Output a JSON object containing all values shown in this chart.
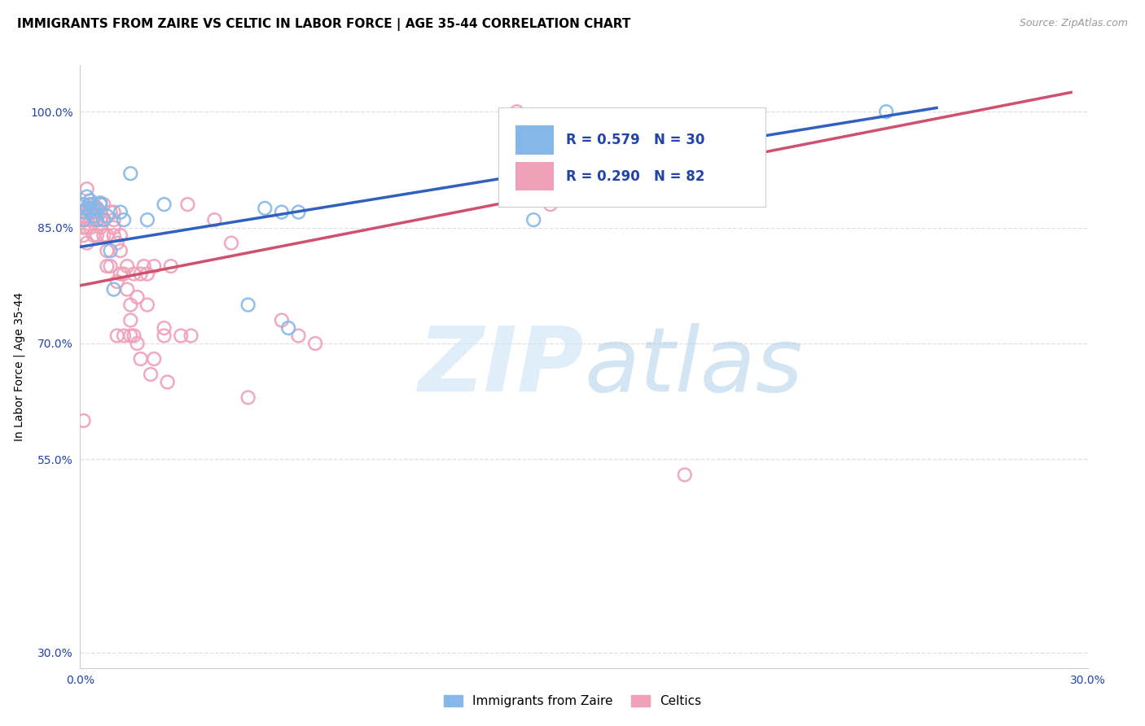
{
  "title": "IMMIGRANTS FROM ZAIRE VS CELTIC IN LABOR FORCE | AGE 35-44 CORRELATION CHART",
  "source": "Source: ZipAtlas.com",
  "ylabel": "In Labor Force | Age 35-44",
  "xlim": [
    0.0,
    0.3
  ],
  "ylim": [
    0.28,
    1.06
  ],
  "xticks": [
    0.0,
    0.05,
    0.1,
    0.15,
    0.2,
    0.25,
    0.3
  ],
  "xticklabels": [
    "0.0%",
    "",
    "",
    "",
    "",
    "",
    "30.0%"
  ],
  "yticks": [
    0.3,
    0.55,
    0.7,
    0.85,
    1.0
  ],
  "yticklabels": [
    "30.0%",
    "55.0%",
    "70.0%",
    "85.0%",
    "100.0%"
  ],
  "grid_color": "#e0e0e0",
  "background_color": "#ffffff",
  "blue_color": "#85b8e8",
  "pink_color": "#f0a0b8",
  "blue_line_color": "#3060c0",
  "pink_line_color": "#d05070",
  "legend_text_color": "#2244aa",
  "blue_R": 0.579,
  "blue_N": 30,
  "pink_R": 0.29,
  "pink_N": 82,
  "legend_label_blue": "Immigrants from Zaire",
  "legend_label_pink": "Celtics",
  "blue_points_x": [
    0.001,
    0.001,
    0.001,
    0.002,
    0.002,
    0.003,
    0.003,
    0.003,
    0.004,
    0.004,
    0.005,
    0.005,
    0.006,
    0.006,
    0.007,
    0.008,
    0.009,
    0.01,
    0.012,
    0.013,
    0.015,
    0.02,
    0.025,
    0.05,
    0.055,
    0.06,
    0.062,
    0.065,
    0.135,
    0.24
  ],
  "blue_points_y": [
    0.87,
    0.88,
    0.86,
    0.89,
    0.875,
    0.88,
    0.885,
    0.87,
    0.865,
    0.875,
    0.86,
    0.875,
    0.88,
    0.882,
    0.86,
    0.865,
    0.82,
    0.77,
    0.87,
    0.86,
    0.92,
    0.86,
    0.88,
    0.75,
    0.875,
    0.87,
    0.72,
    0.87,
    0.86,
    1.0
  ],
  "pink_points_x": [
    0.001,
    0.001,
    0.001,
    0.001,
    0.001,
    0.001,
    0.001,
    0.002,
    0.002,
    0.002,
    0.002,
    0.002,
    0.002,
    0.003,
    0.003,
    0.003,
    0.003,
    0.003,
    0.004,
    0.004,
    0.004,
    0.004,
    0.005,
    0.005,
    0.005,
    0.005,
    0.006,
    0.006,
    0.006,
    0.007,
    0.007,
    0.007,
    0.008,
    0.008,
    0.008,
    0.009,
    0.009,
    0.01,
    0.01,
    0.01,
    0.01,
    0.011,
    0.011,
    0.011,
    0.012,
    0.012,
    0.012,
    0.013,
    0.013,
    0.014,
    0.014,
    0.015,
    0.015,
    0.015,
    0.016,
    0.016,
    0.017,
    0.017,
    0.018,
    0.018,
    0.019,
    0.02,
    0.02,
    0.021,
    0.022,
    0.022,
    0.025,
    0.025,
    0.026,
    0.027,
    0.03,
    0.032,
    0.033,
    0.04,
    0.045,
    0.05,
    0.06,
    0.065,
    0.07,
    0.13,
    0.14,
    0.18
  ],
  "pink_points_y": [
    0.87,
    0.88,
    0.86,
    0.865,
    0.84,
    0.85,
    0.6,
    0.9,
    0.87,
    0.85,
    0.875,
    0.86,
    0.83,
    0.875,
    0.87,
    0.86,
    0.88,
    0.85,
    0.86,
    0.87,
    0.88,
    0.84,
    0.875,
    0.86,
    0.87,
    0.84,
    0.85,
    0.86,
    0.87,
    0.86,
    0.84,
    0.88,
    0.82,
    0.84,
    0.8,
    0.87,
    0.8,
    0.86,
    0.84,
    0.85,
    0.87,
    0.83,
    0.78,
    0.71,
    0.79,
    0.82,
    0.84,
    0.79,
    0.71,
    0.8,
    0.77,
    0.73,
    0.75,
    0.71,
    0.71,
    0.79,
    0.7,
    0.76,
    0.79,
    0.68,
    0.8,
    0.79,
    0.75,
    0.66,
    0.68,
    0.8,
    0.72,
    0.71,
    0.65,
    0.8,
    0.71,
    0.88,
    0.71,
    0.86,
    0.83,
    0.63,
    0.73,
    0.71,
    0.7,
    1.0,
    0.88,
    0.53
  ],
  "title_fontsize": 11,
  "axis_tick_color": "#2244aa",
  "axis_tick_fontsize": 10,
  "blue_line_x": [
    0.0,
    0.255
  ],
  "blue_line_y": [
    0.825,
    1.005
  ],
  "pink_line_x": [
    0.0,
    0.295
  ],
  "pink_line_y": [
    0.775,
    1.025
  ]
}
